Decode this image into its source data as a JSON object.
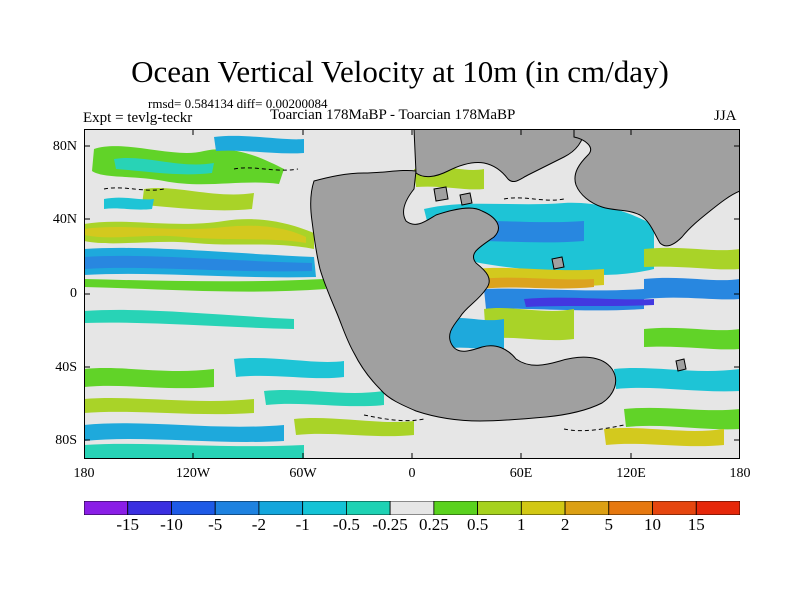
{
  "figure": {
    "title": "Ocean Vertical Velocity at 10m (in cm/day)",
    "stats": "rmsd= 0.584134 diff= 0.00200084",
    "experiment": "Expt = tevlg-teckr",
    "case": "Toarcian 178MaBP - Toarcian 178MaBP",
    "season": "JJA"
  },
  "axes": {
    "lat_labels": [
      "80N",
      "40N",
      "0",
      "40S",
      "80S"
    ],
    "lon_labels": [
      "180",
      "120W",
      "60W",
      "0",
      "60E",
      "120E",
      "180"
    ]
  },
  "colorbar": {
    "labels": [
      "-15",
      "-10",
      "-5",
      "-2",
      "-1",
      "-0.5",
      "-0.25",
      "0.25",
      "0.5",
      "1",
      "2",
      "5",
      "10",
      "15"
    ],
    "colors": [
      "#8a1ee6",
      "#3a2fe0",
      "#1e5ae6",
      "#1e82e0",
      "#14a6dc",
      "#14c3d6",
      "#1ed2b4",
      "#e6e6e6",
      "#5ad21e",
      "#a6d21e",
      "#d2c814",
      "#dca014",
      "#e6780f",
      "#e6460f",
      "#e6280a"
    ]
  },
  "map_colors": {
    "land": "#a0a0a0",
    "ocean_neutral": "#e6e6e6",
    "coast": "#000000"
  }
}
